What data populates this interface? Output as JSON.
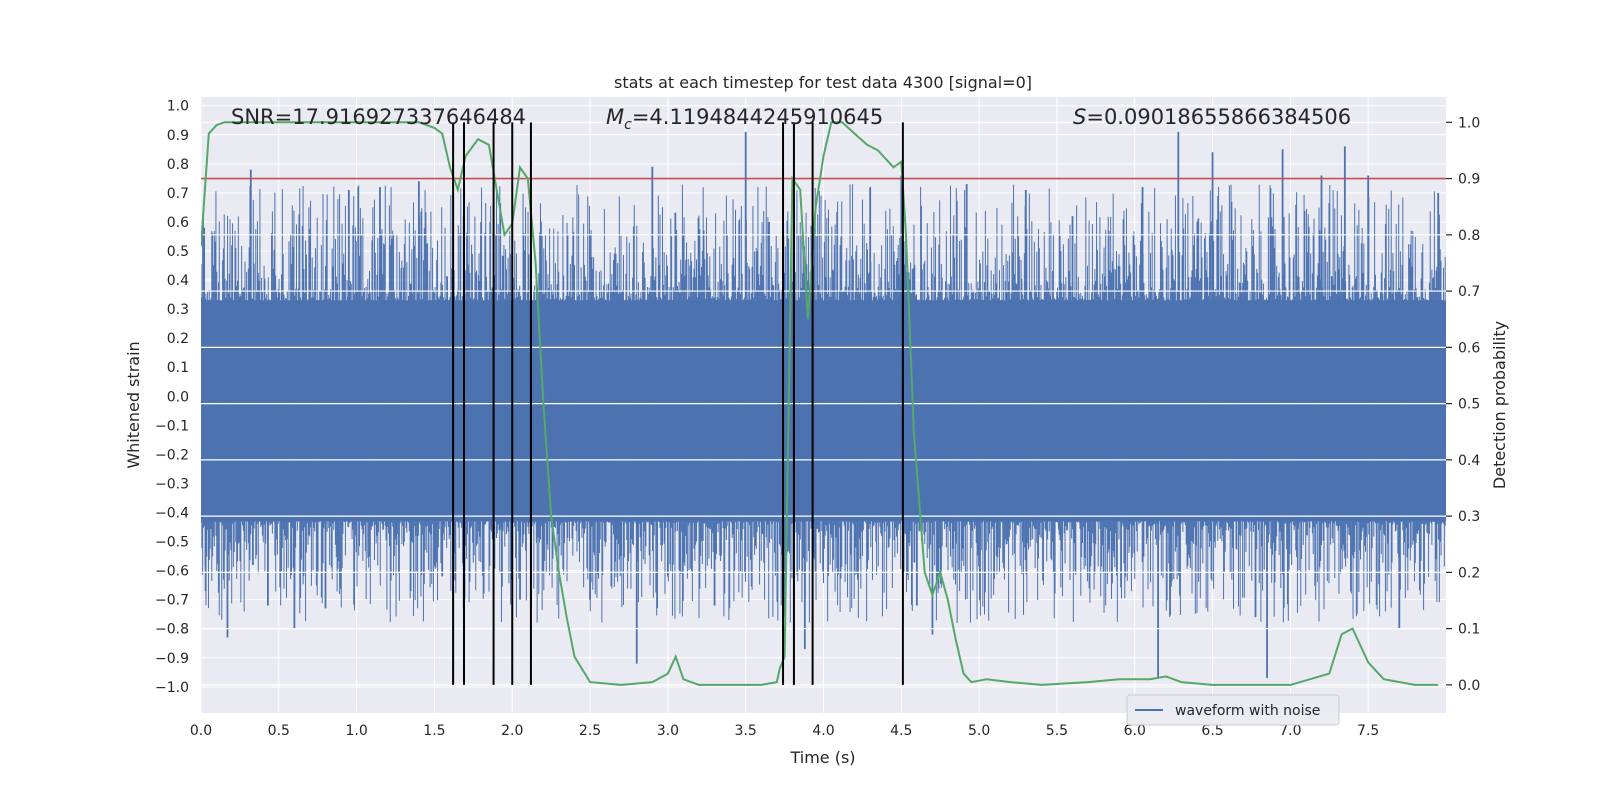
{
  "chart_data": {
    "type": "line",
    "title": "stats at each timestep for test data 4300 [signal=0]",
    "xlabel": "Time (s)",
    "ylabel": "Whitened strain",
    "y2label": "Detection probability",
    "xlim": [
      0.0,
      8.0
    ],
    "ylim": [
      -1.09,
      1.03
    ],
    "y2lim": [
      -0.05,
      1.045
    ],
    "xticks": [
      "0.0",
      "0.5",
      "1.0",
      "1.5",
      "2.0",
      "2.5",
      "3.0",
      "3.5",
      "4.0",
      "4.5",
      "5.0",
      "5.5",
      "6.0",
      "6.5",
      "7.0",
      "7.5"
    ],
    "yticks": [
      "1.0",
      "0.9",
      "0.8",
      "0.7",
      "0.6",
      "0.5",
      "0.4",
      "0.3",
      "0.2",
      "0.1",
      "0.0",
      "−0.1",
      "−0.2",
      "−0.3",
      "−0.4",
      "−0.5",
      "−0.6",
      "−0.7",
      "−0.8",
      "−0.9",
      "−1.0"
    ],
    "y2ticks": [
      "1.0",
      "0.9",
      "0.8",
      "0.7",
      "0.6",
      "0.5",
      "0.4",
      "0.3",
      "0.2",
      "0.1",
      "0.0"
    ],
    "annotations": {
      "snr": "SNR=17.916927337646484",
      "mc_symbol": "M",
      "mc_sub": "c",
      "mc_value": "=4.1194844245910645",
      "s_symbol": "S",
      "s_value": "=0.09018655866384506"
    },
    "legend": {
      "label": "waveform with noise",
      "position": "lower-right"
    },
    "threshold": 0.9,
    "vertical_markers_s": [
      1.62,
      1.69,
      1.88,
      2.0,
      2.12,
      3.74,
      3.81,
      3.93,
      4.51
    ],
    "waveform": {
      "name": "waveform with noise",
      "color": "#4c72b0",
      "duration_s": 8.0,
      "dense_band": [
        -0.43,
        0.33
      ],
      "spikes": [
        [
          0.02,
          0.58
        ],
        [
          0.03,
          -0.67
        ],
        [
          0.17,
          -0.83
        ],
        [
          0.32,
          0.78
        ],
        [
          0.43,
          -0.72
        ],
        [
          0.6,
          -0.8
        ],
        [
          0.8,
          -0.73
        ],
        [
          0.95,
          0.71
        ],
        [
          1.15,
          0.72
        ],
        [
          1.4,
          0.74
        ],
        [
          1.55,
          -0.62
        ],
        [
          1.8,
          0.6
        ],
        [
          2.05,
          -0.7
        ],
        [
          2.5,
          -0.7
        ],
        [
          2.8,
          -0.92
        ],
        [
          2.9,
          0.79
        ],
        [
          3.3,
          -0.72
        ],
        [
          3.5,
          0.91
        ],
        [
          3.65,
          0.6
        ],
        [
          3.88,
          -0.87
        ],
        [
          4.3,
          0.72
        ],
        [
          4.5,
          0.76
        ],
        [
          4.6,
          -0.72
        ],
        [
          4.7,
          -0.82
        ],
        [
          4.92,
          0.73
        ],
        [
          5.3,
          0.71
        ],
        [
          5.6,
          0.62
        ],
        [
          6.05,
          0.72
        ],
        [
          6.15,
          -0.97
        ],
        [
          6.28,
          0.91
        ],
        [
          6.5,
          0.84
        ],
        [
          6.85,
          -0.97
        ],
        [
          6.95,
          0.85
        ],
        [
          7.2,
          0.76
        ],
        [
          7.35,
          0.86
        ],
        [
          7.5,
          0.76
        ],
        [
          7.7,
          -0.8
        ],
        [
          7.95,
          0.7
        ]
      ]
    },
    "detection_probability": {
      "name": "detection probability",
      "color": "#55a868",
      "x": [
        0.0,
        0.05,
        0.1,
        0.15,
        0.3,
        0.5,
        0.8,
        1.0,
        1.2,
        1.4,
        1.5,
        1.55,
        1.6,
        1.65,
        1.7,
        1.78,
        1.85,
        1.9,
        1.95,
        2.0,
        2.05,
        2.1,
        2.15,
        2.2,
        2.25,
        2.3,
        2.35,
        2.4,
        2.5,
        2.7,
        2.9,
        3.0,
        3.05,
        3.1,
        3.2,
        3.4,
        3.6,
        3.7,
        3.72,
        3.75,
        3.8,
        3.85,
        3.9,
        3.95,
        4.0,
        4.05,
        4.12,
        4.2,
        4.28,
        4.35,
        4.45,
        4.5,
        4.53,
        4.58,
        4.65,
        4.7,
        4.75,
        4.8,
        4.85,
        4.9,
        4.95,
        5.05,
        5.2,
        5.4,
        5.7,
        5.9,
        6.1,
        6.2,
        6.3,
        6.5,
        7.0,
        7.25,
        7.33,
        7.4,
        7.5,
        7.6,
        7.8,
        7.95
      ],
      "values": [
        0.78,
        0.98,
        0.995,
        1.0,
        1.0,
        1.0,
        1.0,
        1.0,
        1.0,
        1.0,
        0.99,
        0.98,
        0.92,
        0.88,
        0.94,
        0.97,
        0.96,
        0.88,
        0.8,
        0.82,
        0.92,
        0.9,
        0.75,
        0.5,
        0.3,
        0.2,
        0.12,
        0.05,
        0.005,
        0.0,
        0.005,
        0.02,
        0.05,
        0.01,
        0.0,
        0.0,
        0.0,
        0.005,
        0.03,
        0.05,
        0.9,
        0.88,
        0.65,
        0.85,
        0.94,
        1.0,
        1.0,
        0.98,
        0.96,
        0.95,
        0.92,
        0.93,
        0.8,
        0.45,
        0.2,
        0.16,
        0.2,
        0.15,
        0.08,
        0.02,
        0.005,
        0.01,
        0.005,
        0.0,
        0.005,
        0.01,
        0.01,
        0.015,
        0.005,
        0.0,
        0.0,
        0.02,
        0.09,
        0.1,
        0.04,
        0.01,
        0.0,
        0.0
      ]
    }
  },
  "colors": {
    "axes_bg": "#eaeaf2",
    "grid": "#ffffff",
    "waveform": "#4c72b0",
    "probability": "#55a868",
    "threshold": "#c44e52",
    "marker": "#000000",
    "text": "#262626"
  }
}
